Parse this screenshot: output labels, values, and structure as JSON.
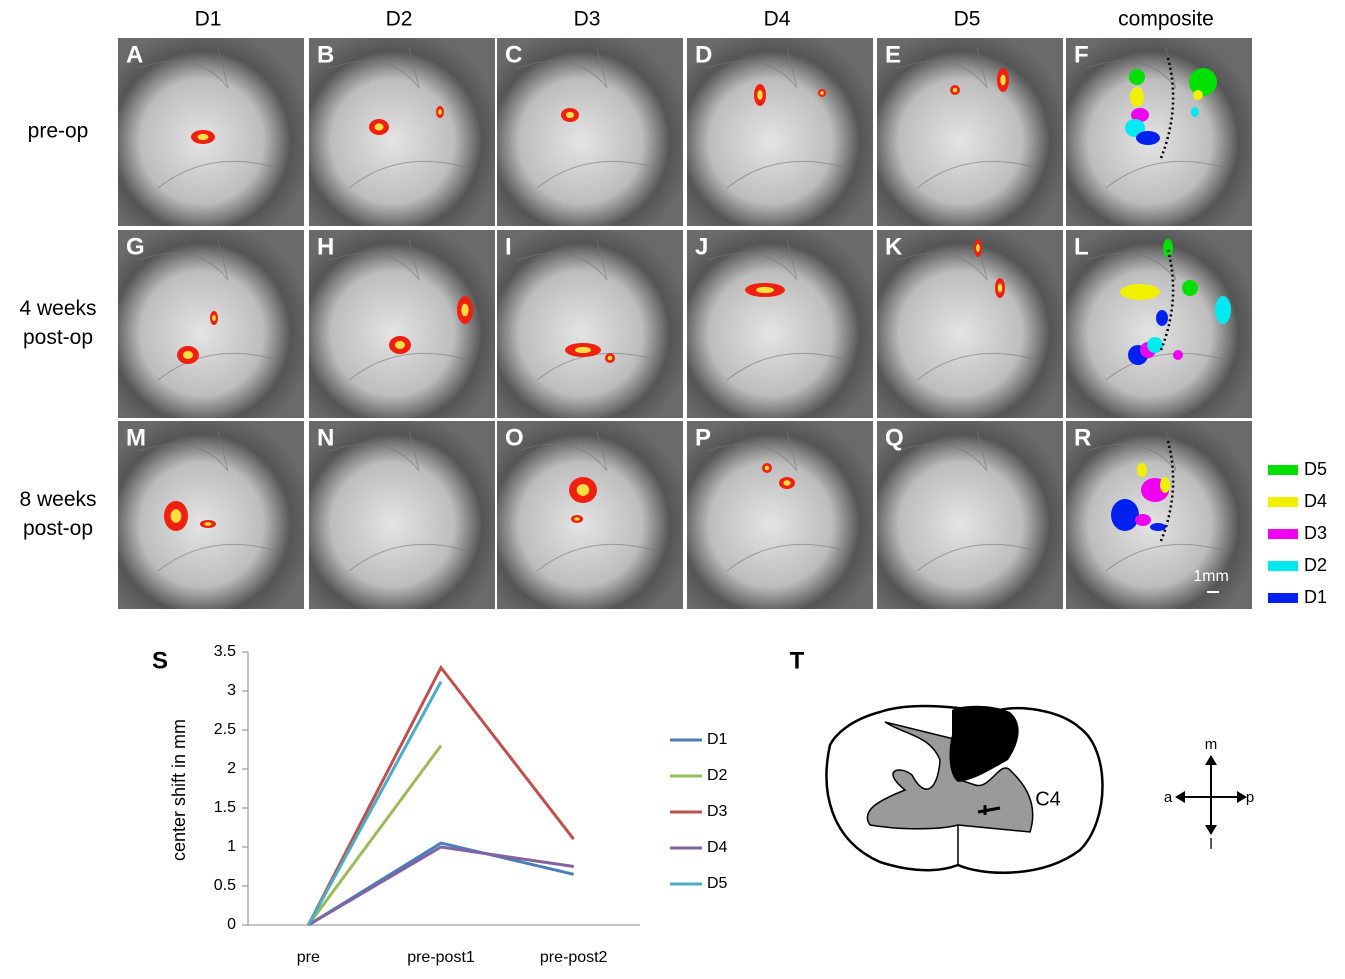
{
  "columns": [
    "D1",
    "D2",
    "D3",
    "D4",
    "D5",
    "composite"
  ],
  "rows": [
    [
      "pre-op"
    ],
    [
      "4 weeks",
      "post-op"
    ],
    [
      "8 weeks",
      "post-op"
    ]
  ],
  "panels": [
    "A",
    "B",
    "C",
    "D",
    "E",
    "F",
    "G",
    "H",
    "I",
    "J",
    "K",
    "L",
    "M",
    "N",
    "O",
    "P",
    "Q",
    "R"
  ],
  "composite_legend": [
    {
      "name": "D5",
      "color": "#00e000"
    },
    {
      "name": "D4",
      "color": "#f0f000"
    },
    {
      "name": "D3",
      "color": "#f000f0"
    },
    {
      "name": "D2",
      "color": "#00e8f0"
    },
    {
      "name": "D1",
      "color": "#0020f0"
    }
  ],
  "scale_bar": "1mm",
  "chart_data": {
    "type": "line",
    "panel": "S",
    "ylabel": "center shift in mm",
    "categories": [
      "pre",
      "pre-post1",
      "pre-post2"
    ],
    "series": [
      {
        "name": "D1",
        "color": "#4a7ebb",
        "values": [
          0,
          1.05,
          0.65
        ]
      },
      {
        "name": "D2",
        "color": "#9bbb59",
        "values": [
          0,
          2.3,
          null
        ]
      },
      {
        "name": "D3",
        "color": "#c0504d",
        "values": [
          0,
          3.3,
          1.1
        ]
      },
      {
        "name": "D4",
        "color": "#8064a2",
        "values": [
          0,
          1.0,
          0.75
        ]
      },
      {
        "name": "D5",
        "color": "#4bacc6",
        "values": [
          0,
          3.12,
          null
        ]
      }
    ],
    "ylim": [
      0,
      3.5
    ],
    "yticks": [
      0,
      0.5,
      1,
      1.5,
      2,
      2.5,
      3,
      3.5
    ]
  },
  "diagram": {
    "panel": "T",
    "segment": "C4",
    "compass": {
      "up": "m",
      "left": "a",
      "right": "p",
      "down": "l"
    }
  }
}
